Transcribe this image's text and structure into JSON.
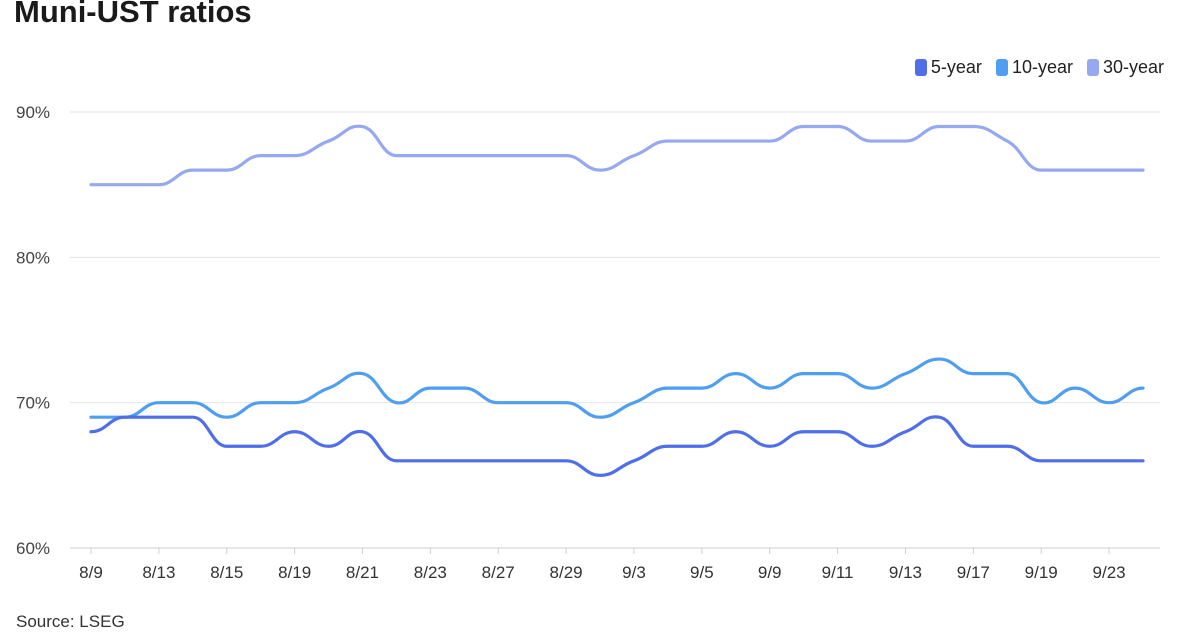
{
  "header": {
    "title": "Muni-UST ratios"
  },
  "footer": {
    "source": "Source: LSEG"
  },
  "legend": [
    {
      "label": "5-year",
      "color": "#4f6ee8"
    },
    {
      "label": "10-year",
      "color": "#4f9ef0"
    },
    {
      "label": "30-year",
      "color": "#96a8f0"
    }
  ],
  "chart_data": {
    "type": "line",
    "title": "Muni-UST ratios",
    "xlabel": "",
    "ylabel": "",
    "ylim": [
      60,
      90
    ],
    "yticks": [
      "60%",
      "70%",
      "80%",
      "90%"
    ],
    "ytick_values": [
      60,
      70,
      80,
      90
    ],
    "grid": true,
    "legend_position": "top-right",
    "x_tick_labels": [
      "8/9",
      "8/13",
      "8/15",
      "8/19",
      "8/21",
      "8/23",
      "8/27",
      "8/29",
      "9/3",
      "9/5",
      "9/9",
      "9/11",
      "9/13",
      "9/17",
      "9/19",
      "9/23"
    ],
    "x_tick_index": [
      0,
      2,
      4,
      6,
      8,
      10,
      12,
      14,
      16,
      18,
      20,
      22,
      24,
      26,
      28,
      30
    ],
    "x": [
      "8/9",
      "8/12",
      "8/13",
      "8/14",
      "8/15",
      "8/16",
      "8/19",
      "8/20",
      "8/21",
      "8/22",
      "8/23",
      "8/26",
      "8/27",
      "8/28",
      "8/29",
      "8/30",
      "9/3",
      "9/4",
      "9/5",
      "9/6",
      "9/9",
      "9/10",
      "9/11",
      "9/12",
      "9/13",
      "9/16",
      "9/17",
      "9/18",
      "9/19",
      "9/20",
      "9/23",
      "9/24"
    ],
    "series": [
      {
        "name": "5-year",
        "color": "#4f6ee8",
        "values": [
          68,
          69,
          69,
          69,
          67,
          67,
          68,
          67,
          68,
          66,
          66,
          66,
          66,
          66,
          66,
          65,
          66,
          67,
          67,
          68,
          67,
          68,
          68,
          67,
          68,
          69,
          67,
          67,
          66,
          66,
          66,
          66
        ]
      },
      {
        "name": "10-year",
        "color": "#4f9ef0",
        "values": [
          69,
          69,
          70,
          70,
          69,
          70,
          70,
          71,
          72,
          70,
          71,
          71,
          70,
          70,
          70,
          69,
          70,
          71,
          71,
          72,
          71,
          72,
          72,
          71,
          72,
          73,
          72,
          72,
          70,
          71,
          70,
          71
        ]
      },
      {
        "name": "30-year",
        "color": "#96a8f0",
        "values": [
          85,
          85,
          85,
          86,
          86,
          87,
          87,
          88,
          89,
          87,
          87,
          87,
          87,
          87,
          87,
          86,
          87,
          88,
          88,
          88,
          88,
          89,
          89,
          88,
          88,
          89,
          89,
          88,
          86,
          86,
          86,
          86
        ]
      }
    ]
  }
}
